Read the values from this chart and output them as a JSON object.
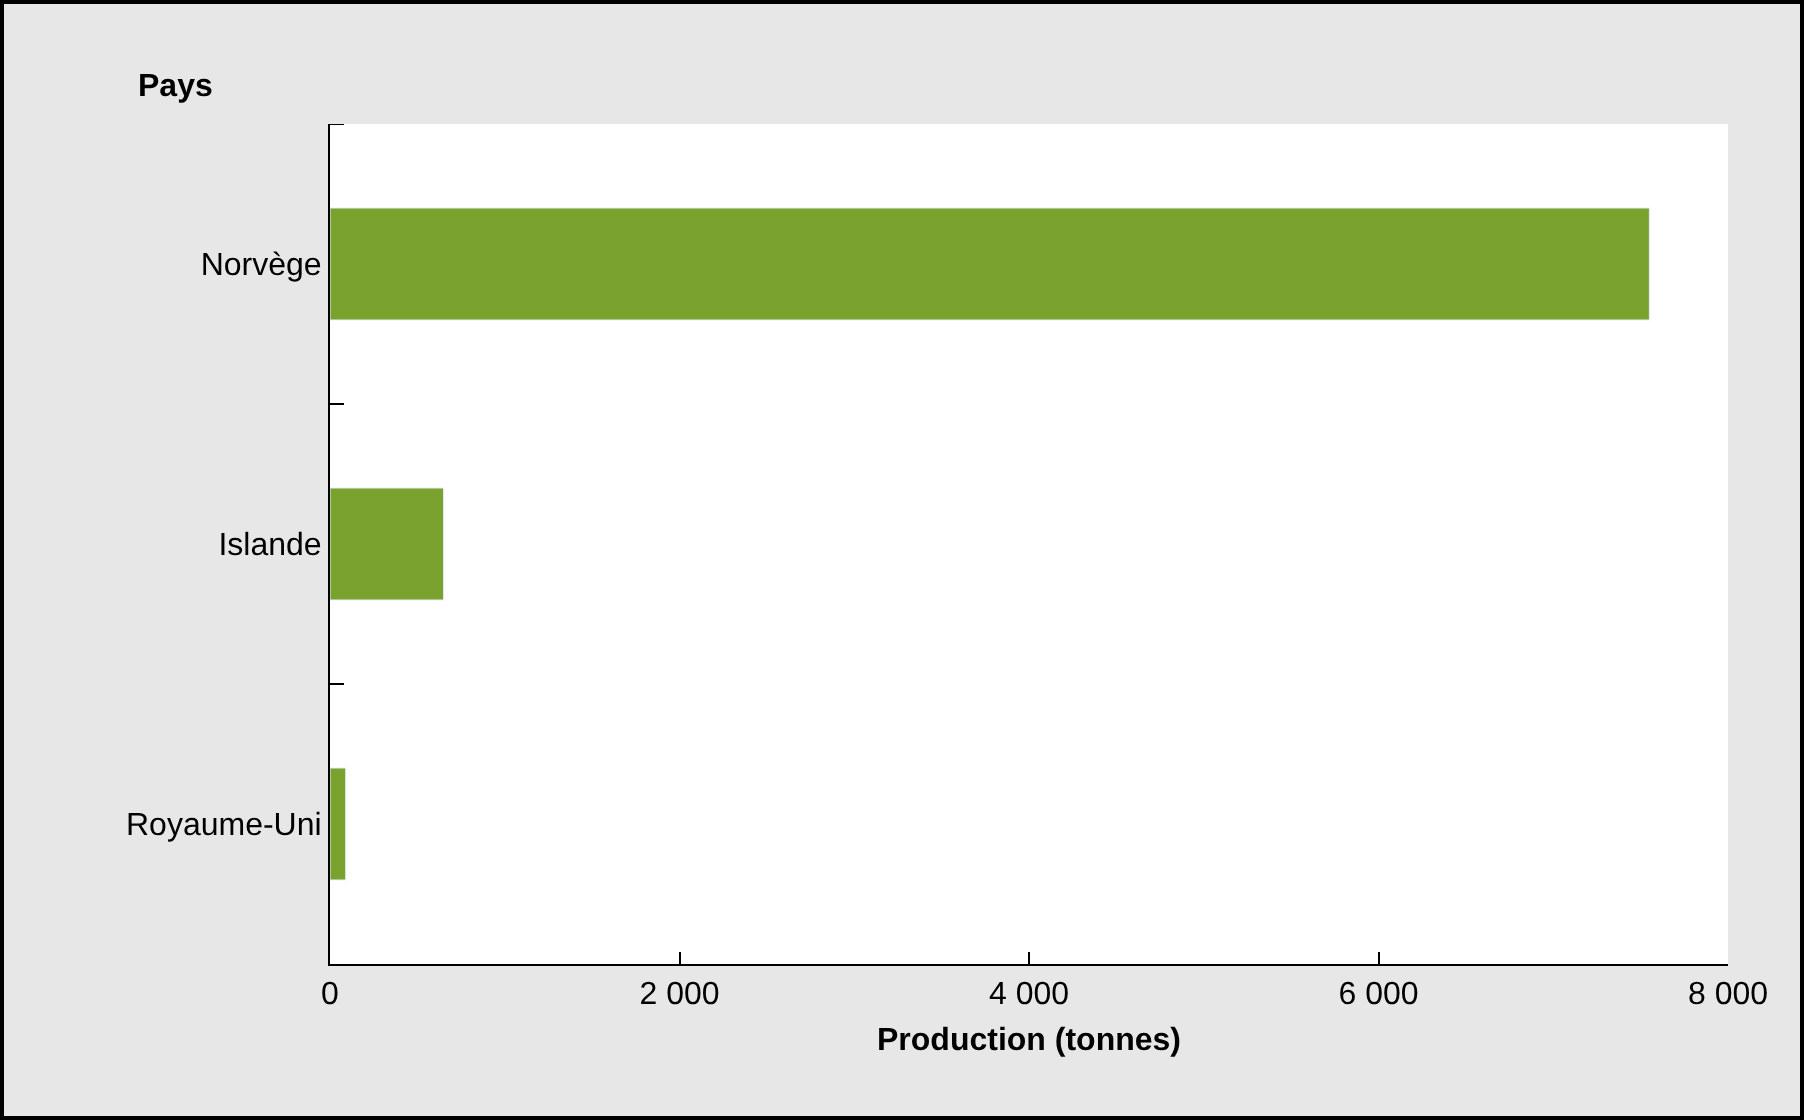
{
  "chart_data": {
    "type": "bar",
    "orientation": "horizontal",
    "ylabel": "Pays",
    "xlabel": "Production (tonnes)",
    "categories": [
      "Norvège",
      "Islande",
      "Royaume-Uni"
    ],
    "values": [
      7550,
      650,
      90
    ],
    "color": "#7aa22f",
    "xlim": [
      0,
      8000
    ],
    "xticks": [
      {
        "value": 0,
        "label": "0"
      },
      {
        "value": 2000,
        "label": "2 000"
      },
      {
        "value": 4000,
        "label": "4 000"
      },
      {
        "value": 6000,
        "label": "6 000"
      },
      {
        "value": 8000,
        "label": "8 000"
      }
    ],
    "legend": false
  }
}
